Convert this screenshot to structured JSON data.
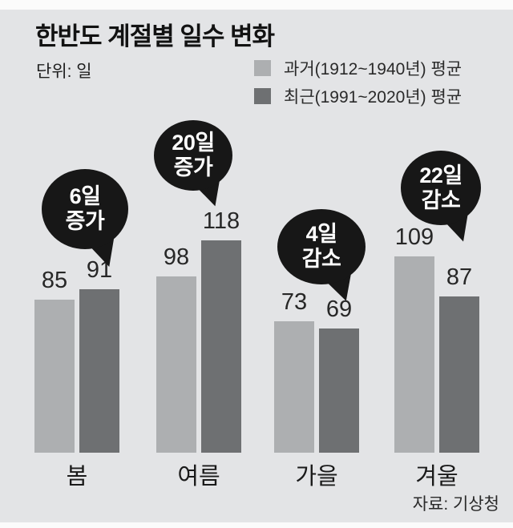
{
  "header": {
    "title": "한반도 계절별 일수 변화",
    "unit_label": "단위: 일"
  },
  "chart_data": {
    "type": "bar",
    "title": "한반도 계절별 일수 변화",
    "unit": "일",
    "categories": [
      "봄",
      "여름",
      "가을",
      "겨울"
    ],
    "series": [
      {
        "name": "과거(1912~1940년) 평균",
        "color": "#adafb1",
        "values": [
          85,
          98,
          73,
          109
        ]
      },
      {
        "name": "최근(1991~2020년) 평균",
        "color": "#6e7072",
        "values": [
          91,
          118,
          69,
          87
        ]
      }
    ],
    "annotations": [
      {
        "category": "봄",
        "lines": [
          "6일",
          "증가"
        ]
      },
      {
        "category": "여름",
        "lines": [
          "20일",
          "증가"
        ]
      },
      {
        "category": "가을",
        "lines": [
          "4일",
          "감소"
        ]
      },
      {
        "category": "겨울",
        "lines": [
          "22일",
          "감소"
        ]
      }
    ],
    "value_labels": [
      "85",
      "91",
      "98",
      "118",
      "73",
      "69",
      "109",
      "87"
    ],
    "ylim": [
      0,
      130
    ],
    "grid": false,
    "legend_position": "top-right",
    "annotation_color": "#171717",
    "background_color": "#e3e4e6",
    "source": "자료: 기상청"
  }
}
